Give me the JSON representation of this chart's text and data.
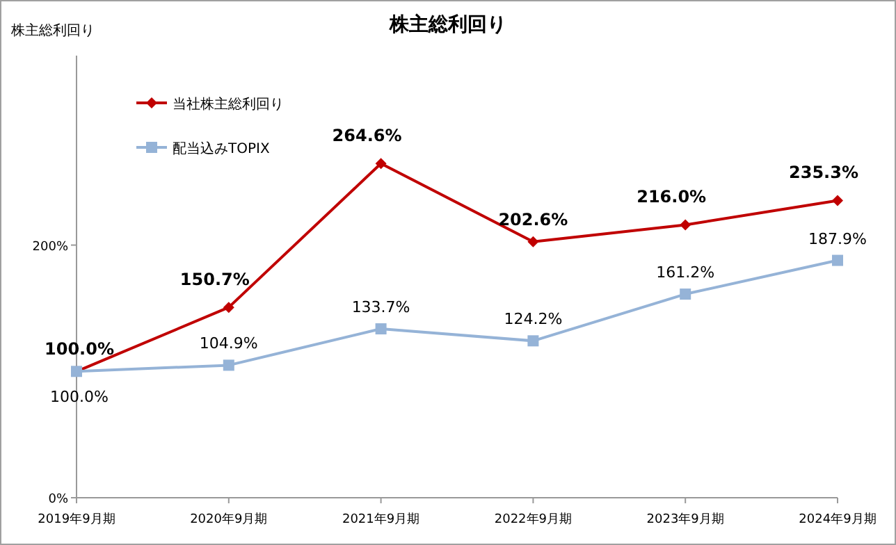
{
  "chart_data": {
    "type": "line",
    "title": "株主総利回り",
    "ylabel": "株主総利回り",
    "categories": [
      "2019年9月期",
      "2020年9月期",
      "2021年9月期",
      "2022年9月期",
      "2023年9月期",
      "2024年9月期"
    ],
    "series": [
      {
        "name": "当社株主総利回り",
        "color": "#c00000",
        "marker": "diamond",
        "values": [
          100.0,
          150.7,
          264.6,
          202.6,
          216.0,
          235.3
        ],
        "value_labels": [
          "100.0%",
          "150.7%",
          "264.6%",
          "202.6%",
          "216.0%",
          "235.3%"
        ]
      },
      {
        "name": "配当込みTOPIX",
        "color": "#95b3d7",
        "marker": "square",
        "values": [
          100.0,
          104.9,
          133.7,
          124.2,
          161.2,
          187.9
        ],
        "value_labels": [
          "100.0%",
          "104.9%",
          "133.7%",
          "124.2%",
          "161.2%",
          "187.9%"
        ]
      }
    ],
    "ylim": [
      0,
      350
    ],
    "yticks": [
      {
        "value": 0,
        "label": "0%"
      },
      {
        "value": 200,
        "label": "200%"
      }
    ],
    "legend": "top left",
    "grid": false
  }
}
